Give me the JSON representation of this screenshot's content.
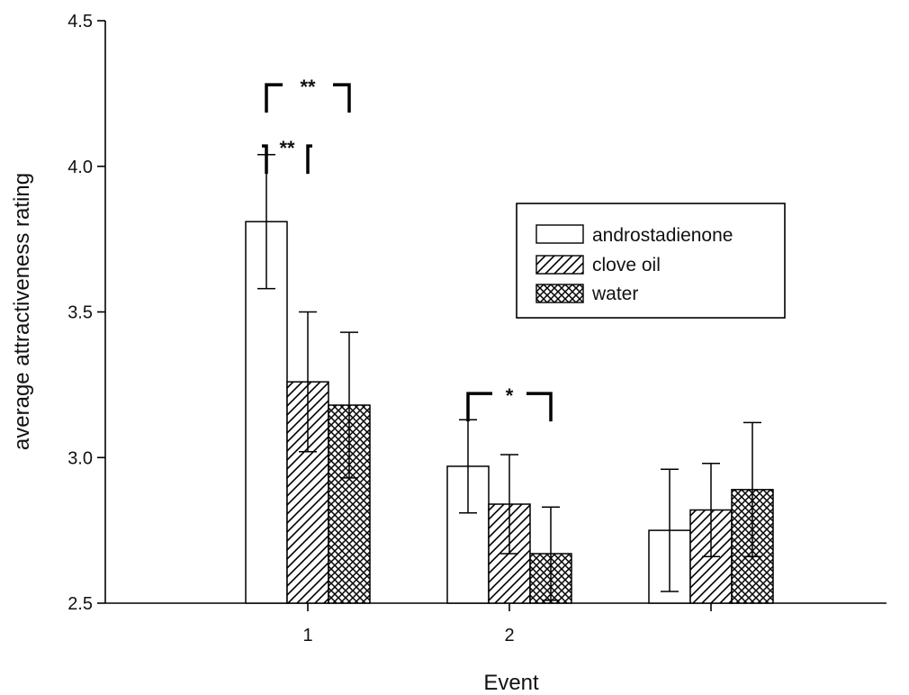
{
  "chart_data": {
    "type": "bar",
    "xlabel": "Event",
    "ylabel": "average attractiveness rating",
    "ylim": [
      2.5,
      4.5
    ],
    "yticks": [
      "2.5",
      "3.0",
      "3.5",
      "4.0",
      "4.5"
    ],
    "categories": [
      "1",
      "2",
      ""
    ],
    "legend_position": "top-right",
    "series": [
      {
        "name": "androstadienone",
        "pattern": "none",
        "color": "#ffffff",
        "values": [
          3.81,
          2.97,
          2.75
        ],
        "errors": [
          0.23,
          0.16,
          0.21
        ]
      },
      {
        "name": "clove oil",
        "pattern": "diagonal-hatch",
        "color": "#ffffff",
        "values": [
          3.26,
          2.84,
          2.82
        ],
        "errors": [
          0.24,
          0.17,
          0.16
        ]
      },
      {
        "name": "water",
        "pattern": "crosshatch",
        "color": "#ffffff",
        "values": [
          3.18,
          2.67,
          2.89
        ],
        "errors": [
          0.25,
          0.16,
          0.23
        ]
      }
    ],
    "significance": [
      {
        "category": 0,
        "from_series": 0,
        "to_series": 2,
        "label": "**",
        "level": 4.28
      },
      {
        "category": 0,
        "from_series": 0,
        "to_series": 1,
        "label": "**",
        "level": 4.07
      },
      {
        "category": 1,
        "from_series": 0,
        "to_series": 2,
        "label": "*",
        "level": 3.22
      }
    ]
  }
}
